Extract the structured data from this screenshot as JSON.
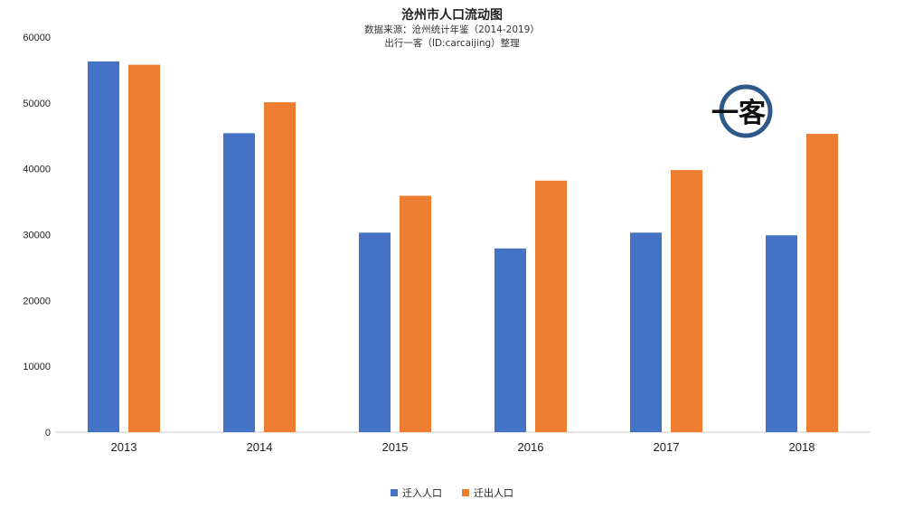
{
  "chart_data": {
    "type": "bar",
    "title": "沧州市人口流动图",
    "subtitles": [
      "数据来源：沧州统计年鉴（2014-2019）",
      "出行一客（ID:carcaijing）整理"
    ],
    "categories": [
      "2013",
      "2014",
      "2015",
      "2016",
      "2017",
      "2018"
    ],
    "series": [
      {
        "name": "迁入人口",
        "color": "#4472C4",
        "values": [
          56300,
          45400,
          30300,
          27900,
          30300,
          29900
        ]
      },
      {
        "name": "迁出人口",
        "color": "#ED7D31",
        "values": [
          55800,
          50100,
          35900,
          38200,
          39800,
          45300
        ]
      }
    ],
    "ylim": [
      0,
      60000
    ],
    "yticks": [
      0,
      10000,
      20000,
      30000,
      40000,
      50000,
      60000
    ],
    "xlabel": "",
    "ylabel": "",
    "grid": false,
    "legend_position": "bottom"
  },
  "brand": {
    "text": "一客",
    "ring_color": "#2E5A8A"
  }
}
